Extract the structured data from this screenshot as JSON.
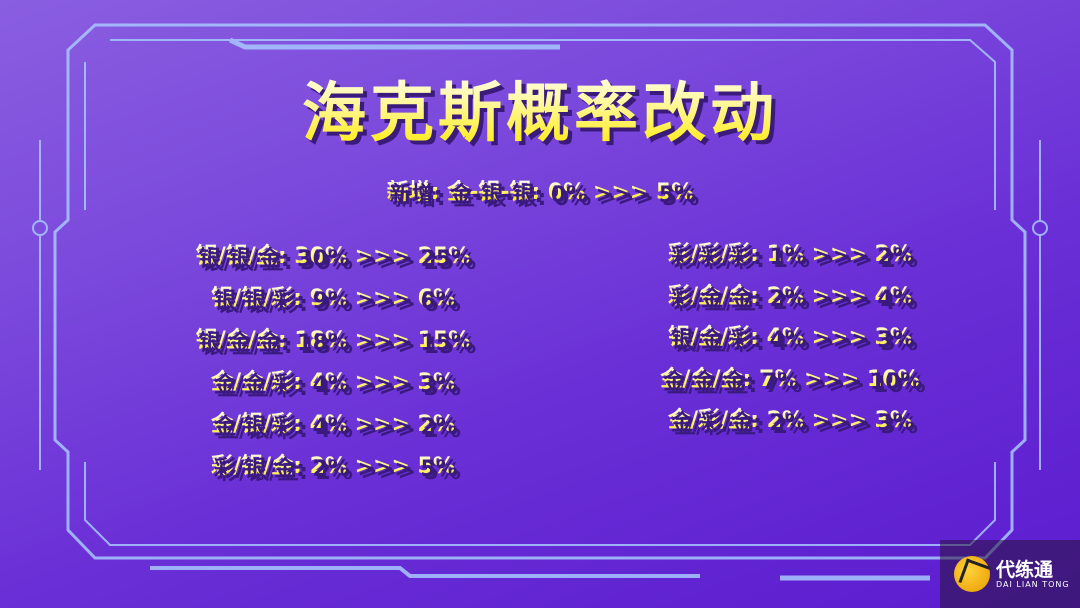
{
  "title": "海克斯概率改动",
  "new_item": "新增: 金-银-银: 0% >>> 5%",
  "left_column": [
    "银/银/金: 30% >>> 25%",
    "银/银/彩: 9% >>> 6%",
    "银/金/金: 18% >>> 15%",
    "金/金/彩: 4% >>> 3%",
    "金/银/彩: 4% >>> 2%",
    "彩/银/金: 2% >>> 5%"
  ],
  "right_column": [
    "彩/彩/彩: 1% >>> 2%",
    "彩/金/金: 2% >>> 4%",
    "银/金/彩: 4% >>> 3%",
    "金/金/金: 7% >>> 10%",
    "金/彩/金: 2% >>> 3%"
  ],
  "watermark": {
    "name": "代练通",
    "sub": "DAI LIAN TONG"
  },
  "colors": {
    "text": "#ffe800",
    "frame": "#9fc4ff",
    "background": "#6a2fd6"
  }
}
